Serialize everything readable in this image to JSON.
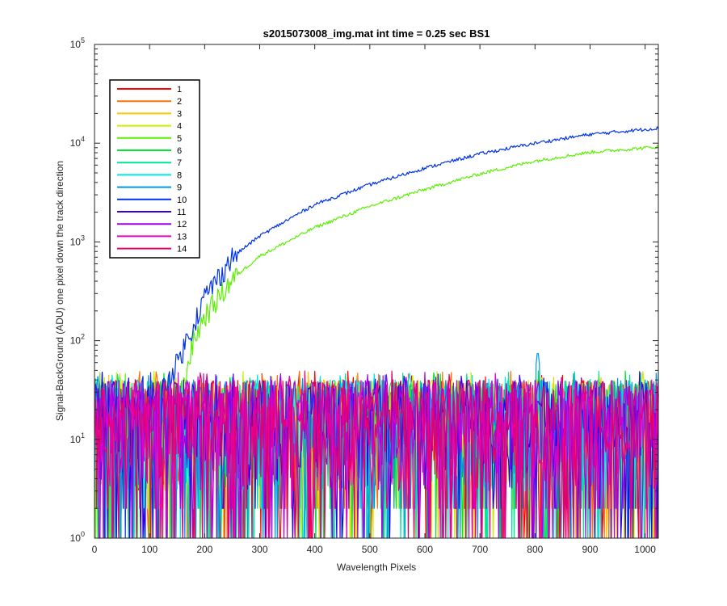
{
  "chart_data": {
    "type": "line",
    "title": "s2015073008_img.mat int time = 0.25 sec   BS1",
    "xlabel": "Wavelength Pixels",
    "ylabel": "Signal-BackGround (ADU) one pixel down the track direction",
    "xlim": [
      0,
      1024
    ],
    "ylim": [
      1,
      100000
    ],
    "yscale": "log",
    "x_ticks": [
      "0",
      "100",
      "200",
      "300",
      "400",
      "500",
      "600",
      "700",
      "800",
      "900",
      "1000"
    ],
    "y_ticks": [
      {
        "base": "10",
        "exp": "0"
      },
      {
        "base": "10",
        "exp": "1"
      },
      {
        "base": "10",
        "exp": "2"
      },
      {
        "base": "10",
        "exp": "3"
      },
      {
        "base": "10",
        "exp": "4"
      },
      {
        "base": "10",
        "exp": "5"
      }
    ],
    "grid": false,
    "legend_position": "top-left",
    "series": [
      {
        "name": "1",
        "color": "#ff0000"
      },
      {
        "name": "2",
        "color": "#ff7000"
      },
      {
        "name": "3",
        "color": "#ffc800"
      },
      {
        "name": "4",
        "color": "#c8f000"
      },
      {
        "name": "5",
        "color": "#5af000",
        "smooth": [
          [
            160,
            30
          ],
          [
            170,
            60
          ],
          [
            180,
            100
          ],
          [
            200,
            180
          ],
          [
            250,
            420
          ],
          [
            300,
            720
          ],
          [
            400,
            1400
          ],
          [
            500,
            2300
          ],
          [
            600,
            3400
          ],
          [
            700,
            4900
          ],
          [
            800,
            6600
          ],
          [
            900,
            8100
          ],
          [
            1024,
            9200
          ]
        ]
      },
      {
        "name": "6",
        "color": "#00e632"
      },
      {
        "name": "7",
        "color": "#00e696"
      },
      {
        "name": "8",
        "color": "#00e6e6"
      },
      {
        "name": "9",
        "color": "#0096e6",
        "peak": {
          "x": 805,
          "y": 82
        }
      },
      {
        "name": "10",
        "color": "#0032e6",
        "smooth": [
          [
            120,
            30
          ],
          [
            150,
            60
          ],
          [
            180,
            150
          ],
          [
            200,
            280
          ],
          [
            250,
            700
          ],
          [
            300,
            1150
          ],
          [
            400,
            2400
          ],
          [
            500,
            3800
          ],
          [
            600,
            5600
          ],
          [
            700,
            7800
          ],
          [
            800,
            10000
          ],
          [
            900,
            12300
          ],
          [
            1024,
            14200
          ]
        ]
      },
      {
        "name": "11",
        "color": "#3200e6"
      },
      {
        "name": "12",
        "color": "#a000e6"
      },
      {
        "name": "13",
        "color": "#e600c8"
      },
      {
        "name": "14",
        "color": "#e6006e"
      }
    ],
    "noise_level": {
      "min": 1,
      "max": 45
    }
  }
}
